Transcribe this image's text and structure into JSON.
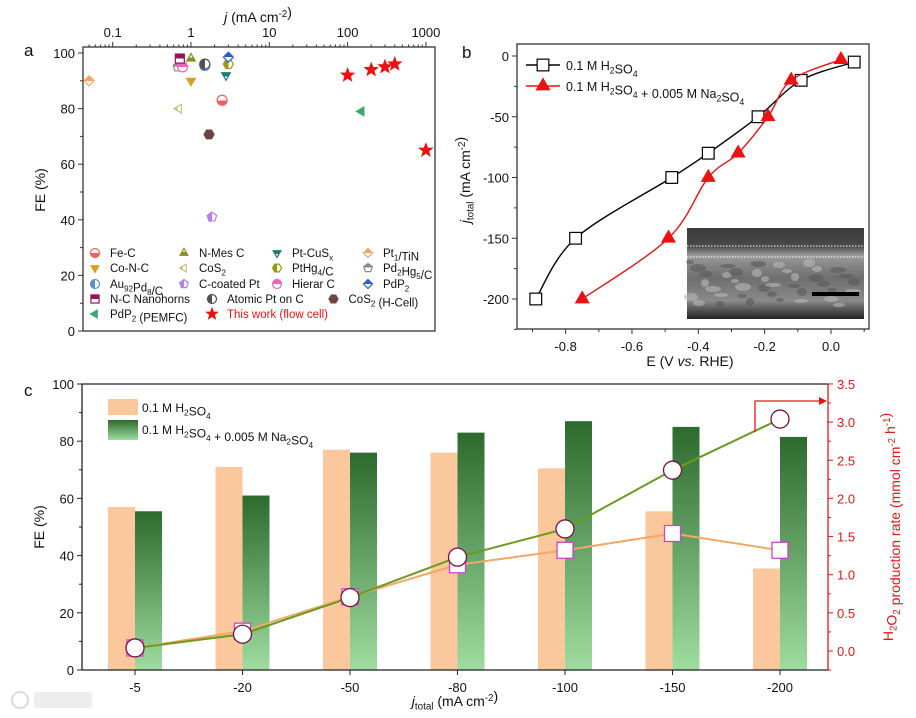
{
  "panels": {
    "a": "a",
    "b": "b",
    "c": "c"
  },
  "watermark": "大数跨境",
  "chart_data": [
    {
      "panel": "a",
      "type": "scatter",
      "title": "",
      "xlabel": {
        "var": "j",
        "unit": " (mA cm-2)"
      },
      "ylabel": "FE (%)",
      "xscale": "log",
      "xlim": [
        0.04,
        1400
      ],
      "ylim": [
        0,
        102
      ],
      "xticks": [
        0.1,
        1,
        10,
        100,
        1000
      ],
      "xtick_labels": [
        "0.1",
        "1",
        "10",
        "100",
        "1000"
      ],
      "yticks": [
        0,
        20,
        40,
        60,
        80,
        100
      ],
      "ytick_labels": [
        "0",
        "20",
        "40",
        "60",
        "80",
        "100"
      ],
      "legend_placement": "bottom",
      "series": [
        {
          "name": "Fe-C",
          "marker": "circle",
          "fill": "bottom",
          "color": "#f06262",
          "points": [
            [
              2.5,
              83
            ]
          ]
        },
        {
          "name": "N-Mes C",
          "marker": "tri-up",
          "fill": "bottom",
          "color": "#8c8c1e",
          "points": [
            [
              1.0,
              98
            ]
          ]
        },
        {
          "name": "Pt-CuSx",
          "marker": "tri-down",
          "fill": "top",
          "color": "#1a7a78",
          "points": [
            [
              2.8,
              92
            ]
          ]
        },
        {
          "name": "Pt1/TiN",
          "marker": "diamond",
          "fill": "top",
          "color": "#f4a565",
          "points": [
            [
              0.05,
              90
            ]
          ]
        },
        {
          "name": "Co-N-C",
          "marker": "tri-down",
          "fill": "full",
          "color": "#d4a21e",
          "points": [
            [
              1.0,
              90
            ]
          ]
        },
        {
          "name": "CoS2",
          "marker": "tri-left",
          "fill": "left",
          "color": "#c8c07a",
          "points": [
            [
              0.7,
              80
            ]
          ]
        },
        {
          "name": "PtHg4/C",
          "marker": "hexagon",
          "fill": "left",
          "color": "#9a9a12",
          "points": [
            [
              3.0,
              96
            ]
          ]
        },
        {
          "name": "Pd2Hg5/C",
          "marker": "pentagon",
          "fill": "top",
          "color": "#8a8a8a",
          "points": [
            [
              0.68,
              95
            ]
          ]
        },
        {
          "name": "Au92Pd8/C",
          "marker": "circle",
          "fill": "left",
          "color": "#5b8fd0",
          "points": [
            [
              1.5,
              95.5
            ]
          ]
        },
        {
          "name": "C-coated Pt",
          "marker": "pentagon",
          "fill": "left",
          "color": "#b27ef2",
          "points": [
            [
              1.85,
              41
            ]
          ]
        },
        {
          "name": "Hierar C",
          "marker": "circle",
          "fill": "top",
          "color": "#f062c2",
          "points": [
            [
              0.78,
              95
            ]
          ]
        },
        {
          "name": "PdP2",
          "marker": "diamond",
          "fill": "top",
          "color": "#2163d2",
          "points": [
            [
              3.0,
              98.5
            ]
          ]
        },
        {
          "name": "N-C Nanohorns",
          "marker": "square",
          "fill": "top",
          "color": "#9a1060",
          "points": [
            [
              0.72,
              98
            ]
          ]
        },
        {
          "name": "Atomic Pt on C",
          "marker": "circle",
          "fill": "left",
          "color": "#505050",
          "points": [
            [
              1.5,
              96
            ]
          ]
        },
        {
          "name": "CoS2 (H-Cell)",
          "marker": "hexagon",
          "fill": "full",
          "color": "#704242",
          "points": [
            [
              1.7,
              70.7
            ]
          ]
        },
        {
          "name": "PdP2  (PEMFC)",
          "marker": "tri-left",
          "fill": "full",
          "color": "#3aaa6a",
          "points": [
            [
              150,
              79
            ]
          ]
        },
        {
          "name": "This work (flow cell)",
          "marker": "star",
          "fill": "full",
          "color": "#ee1111",
          "points": [
            [
              100,
              92
            ],
            [
              200,
              94
            ],
            [
              300,
              95
            ],
            [
              400,
              96
            ],
            [
              1000,
              65
            ]
          ]
        }
      ]
    },
    {
      "panel": "b",
      "type": "line",
      "title": "",
      "xlabel": [
        "E (V ",
        "vs.",
        " RHE)"
      ],
      "ylabel": {
        "var": "j",
        "sub": "total",
        "unit": " (mA cm-2)"
      },
      "xlim": [
        -0.96,
        0.1
      ],
      "ylim": [
        -223,
        10
      ],
      "xticks": [
        -0.8,
        -0.6,
        -0.4,
        -0.2,
        0.0
      ],
      "xtick_labels": [
        "-0.8",
        "-0.6",
        "-0.4",
        "-0.2",
        "0.0"
      ],
      "yticks": [
        0,
        -50,
        -100,
        -150,
        -200
      ],
      "ytick_labels": [
        "0",
        "-50",
        "-100",
        "-150",
        "-200"
      ],
      "legend_placement": "top-left",
      "inset": "SEM cross-section image",
      "series": [
        {
          "name": "0.1 M H2SO4",
          "marker": "square",
          "color": "#000000",
          "x": [
            -0.89,
            -0.77,
            -0.48,
            -0.37,
            -0.22,
            -0.09,
            0.07
          ],
          "y": [
            -200,
            -150,
            -100,
            -80,
            -50,
            -20,
            -5
          ]
        },
        {
          "name": "0.1 M H2SO4 + 0.005 M Na2SO4",
          "marker": "tri-up",
          "color": "#ee1111",
          "x": [
            -0.75,
            -0.49,
            -0.37,
            -0.28,
            -0.19,
            -0.12,
            0.03
          ],
          "y": [
            -200,
            -150,
            -100,
            -80,
            -50,
            -20,
            -3
          ]
        }
      ]
    },
    {
      "panel": "c",
      "type": "bar",
      "title": "",
      "xlabel": {
        "var": "j",
        "sub": "total",
        "unit": " (mA cm-2)"
      },
      "ylabel": "FE (%)",
      "y2label": "H2O2 production rate (mmol cm-2 h-1)",
      "categories": [
        "-5",
        "-20",
        "-50",
        "-80",
        "-100",
        "-150",
        "-200"
      ],
      "ylim": [
        0,
        100
      ],
      "y2lim": [
        -0.25,
        3.5
      ],
      "yticks": [
        0,
        20,
        40,
        60,
        80,
        100
      ],
      "ytick_labels": [
        "0",
        "20",
        "40",
        "60",
        "80",
        "100"
      ],
      "y2ticks": [
        0.0,
        0.5,
        1.0,
        1.5,
        2.0,
        2.5,
        3.0,
        3.5
      ],
      "y2tick_labels": [
        "0.0",
        "0.5",
        "1.0",
        "1.5",
        "2.0",
        "2.5",
        "3.0",
        "3.5"
      ],
      "legend_placement": "top-left",
      "colors": {
        "bar1": "#fac89c",
        "bar2_top": "#2d6a2d",
        "bar2_bottom": "#9fdc9f",
        "line1": "#f2a866",
        "line2": "#6a9a1e",
        "square": "#d040d0",
        "circle": "#7a1040",
        "axis2": "#e01818"
      },
      "series": [
        {
          "name": "0.1 M H2SO4",
          "kind": "bar",
          "axis": "left",
          "values": [
            57,
            71,
            77,
            76,
            70.5,
            55.5,
            35.5
          ]
        },
        {
          "name": "0.1 M H2SO4 + 0.005 M Na2SO4",
          "kind": "bar",
          "axis": "left",
          "values": [
            55.5,
            61,
            76,
            83,
            87,
            85,
            81.5
          ]
        },
        {
          "kind": "line-square",
          "electrolyte": 0,
          "axis": "right",
          "values": [
            0.04,
            0.26,
            0.71,
            1.13,
            1.32,
            1.54,
            1.32
          ]
        },
        {
          "kind": "line-circle",
          "electrolyte": 1,
          "axis": "right",
          "values": [
            0.04,
            0.22,
            0.7,
            1.23,
            1.6,
            2.37,
            3.04
          ]
        }
      ]
    }
  ]
}
